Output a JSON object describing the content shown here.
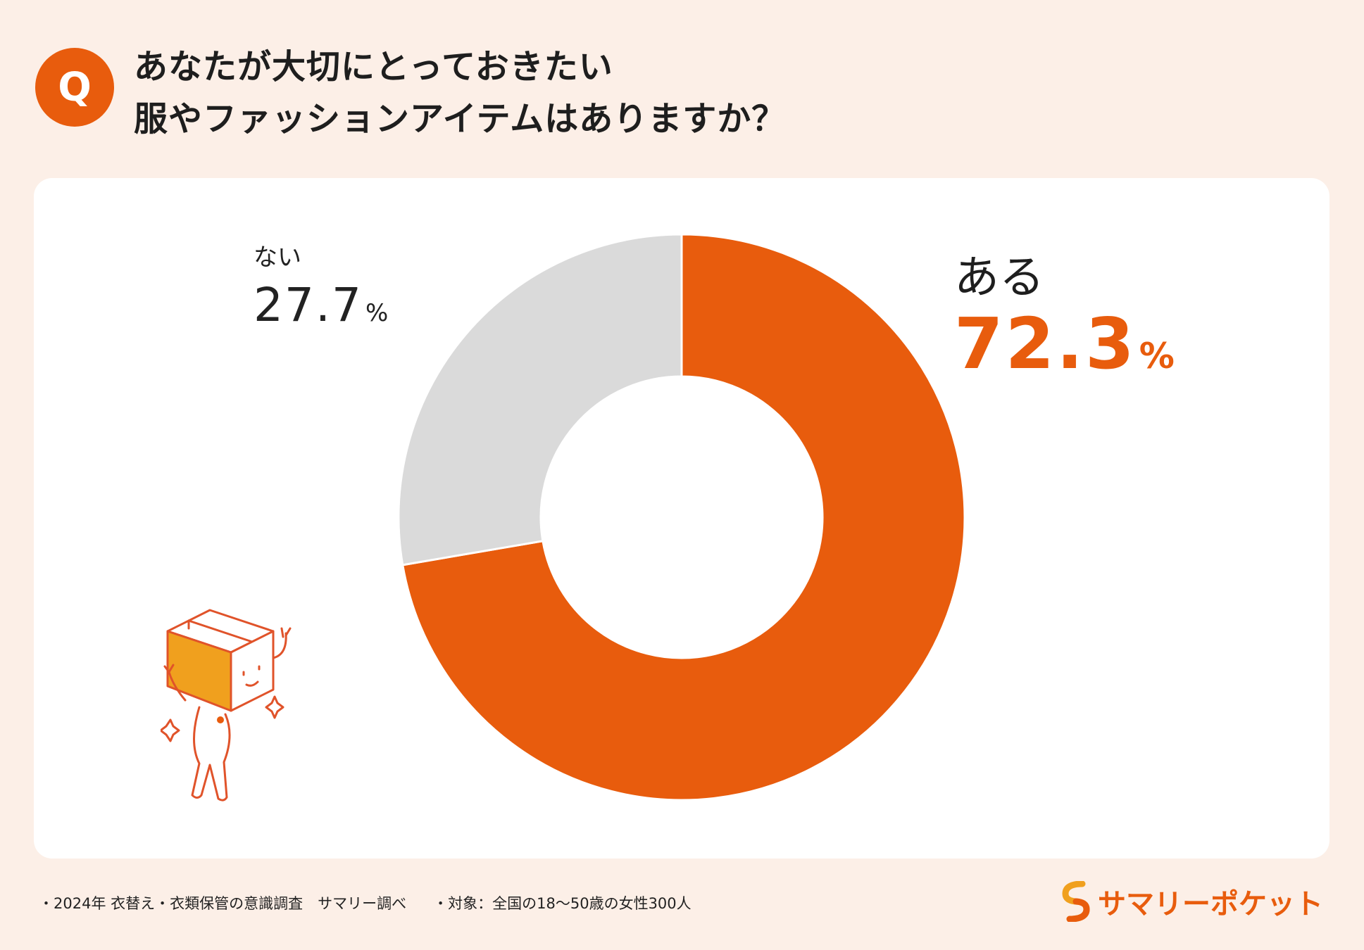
{
  "header": {
    "badge": "Q",
    "title_line1": "あなたが大切にとっておきたい",
    "title_line2": "服やファッションアイテムはありますか？"
  },
  "chart_data": {
    "type": "pie",
    "donut": true,
    "categories": [
      "ある",
      "ない"
    ],
    "values": [
      72.3,
      27.7
    ],
    "unit": "%",
    "colors": [
      "#e85c0d",
      "#dadada"
    ],
    "title": "あなたが大切にとっておきたい服やファッションアイテムはありますか？"
  },
  "labels": {
    "nai_name": "ない",
    "nai_value": "27.7",
    "aru_name": "ある",
    "aru_value": "72.3",
    "percent": "%"
  },
  "footer": {
    "source": "・2024年 衣替え・衣類保管の意識調査　サマリー調べ",
    "target": "・対象：全国の18〜50歳の女性300人"
  },
  "brand": {
    "name": "サマリーポケット",
    "logo_icon": "summary-s-logo-icon",
    "color": "#e85c0d"
  }
}
